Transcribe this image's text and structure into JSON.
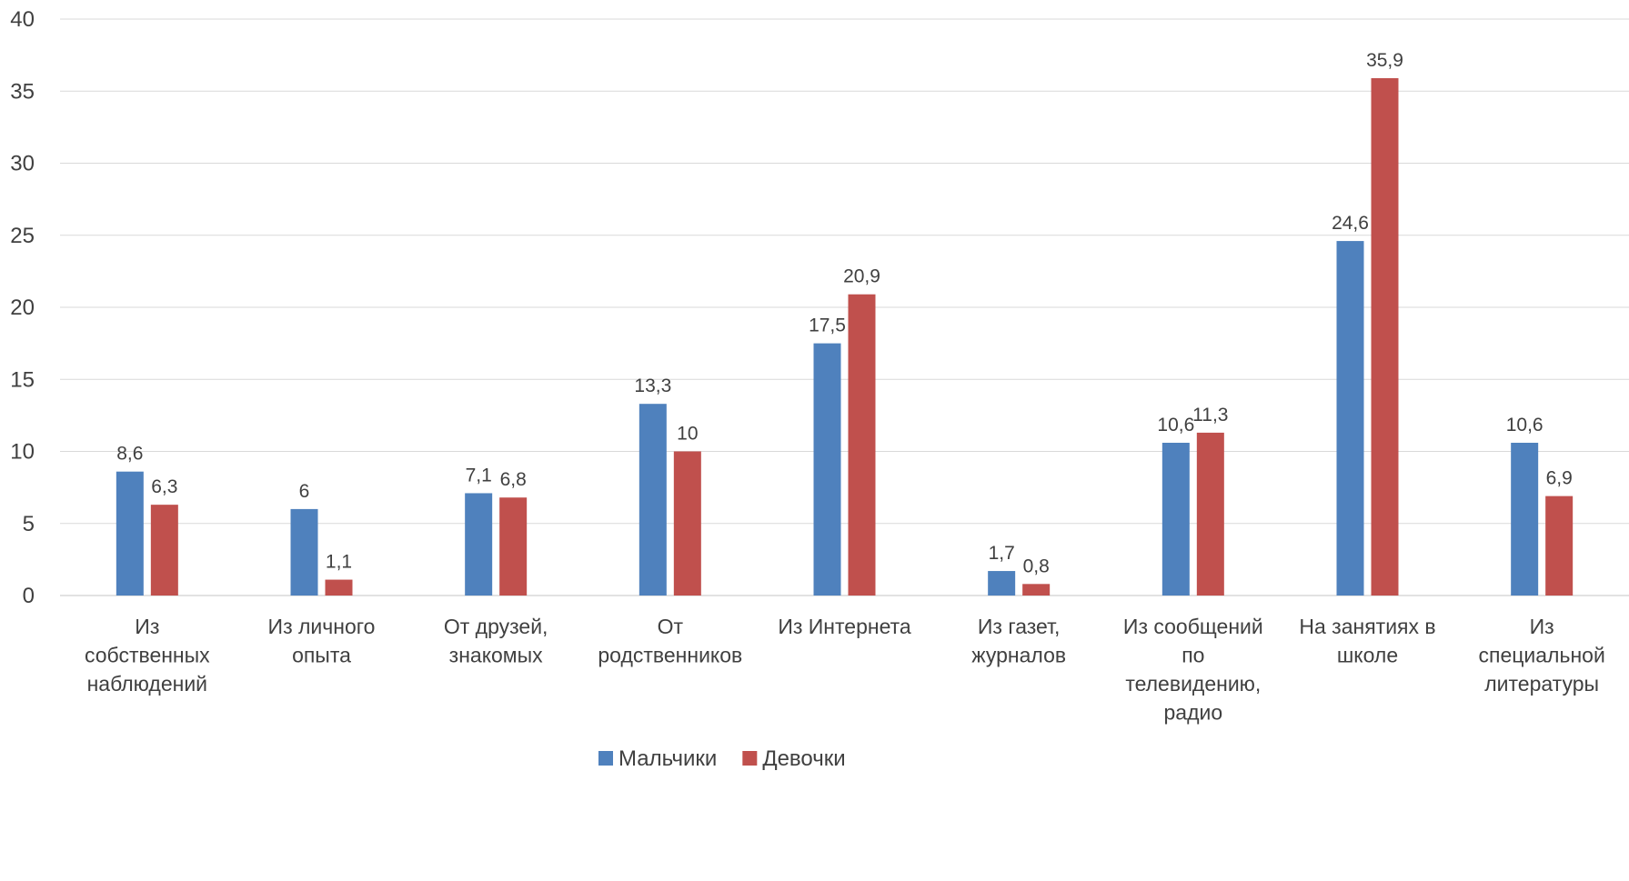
{
  "chart_data": {
    "type": "bar",
    "categories": [
      [
        "Из",
        "собственных",
        "наблюдений"
      ],
      [
        "Из личного",
        "опыта"
      ],
      [
        "От друзей,",
        "знакомых"
      ],
      [
        "От",
        "родственников"
      ],
      [
        "Из Интернета"
      ],
      [
        "Из газет,",
        "журналов"
      ],
      [
        "Из сообщений",
        "по",
        "телевидению,",
        "радио"
      ],
      [
        "На занятиях в",
        "школе"
      ],
      [
        "Из",
        "специальной",
        "литературы"
      ]
    ],
    "series": [
      {
        "name": "Мальчики",
        "color": "#4F81BD",
        "values": [
          8.6,
          6,
          7.1,
          13.3,
          17.5,
          1.7,
          10.6,
          24.6,
          10.6
        ],
        "labels": [
          "8,6",
          "6",
          "7,1",
          "13,3",
          "17,5",
          "1,7",
          "10,6",
          "24,6",
          "10,6"
        ]
      },
      {
        "name": "Девочки",
        "color": "#C0504D",
        "values": [
          6.3,
          1.1,
          6.8,
          10,
          20.9,
          0.8,
          11.3,
          35.9,
          6.9
        ],
        "labels": [
          "6,3",
          "1,1",
          "6,8",
          "10",
          "20,9",
          "0,8",
          "11,3",
          "35,9",
          "6,9"
        ]
      }
    ],
    "y_ticks": [
      "0",
      "5",
      "10",
      "15",
      "20",
      "25",
      "30",
      "35",
      "40"
    ],
    "ylim": [
      0,
      40
    ],
    "grid": true,
    "legend_position": "bottom"
  }
}
